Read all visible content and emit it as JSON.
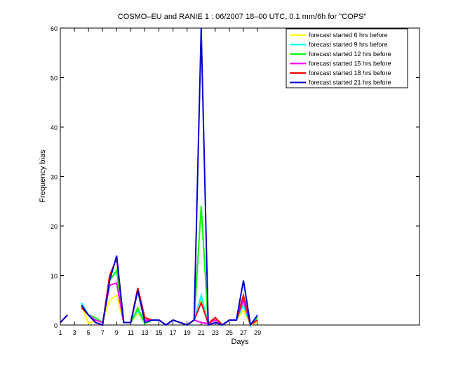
{
  "chart_data": {
    "type": "line",
    "title": "COSMO–EU and RANIE 1 : 06/2007 18–00 UTC, 0.1 mm/6h for \"COPS\"",
    "xlabel": "Days",
    "ylabel": "Frequency bias",
    "x": [
      1,
      2,
      3,
      4,
      5,
      6,
      7,
      8,
      9,
      10,
      11,
      12,
      13,
      14,
      15,
      16,
      17,
      18,
      19,
      20,
      21,
      22,
      23,
      24,
      25,
      26,
      27,
      28,
      29
    ],
    "xlim": [
      1,
      52
    ],
    "xticks": [
      1,
      3,
      5,
      7,
      9,
      11,
      13,
      15,
      17,
      19,
      21,
      23,
      25,
      27,
      29
    ],
    "ylim": [
      0,
      60
    ],
    "yticks": [
      0,
      10,
      20,
      30,
      40,
      50,
      60
    ],
    "legend": "upper right",
    "series": [
      {
        "name": "forecast started 6 hrs before",
        "color": "#ffff00",
        "values": [
          0.5,
          2,
          null,
          4,
          0.3,
          1,
          0.5,
          5,
          6,
          0.5,
          0.5,
          2.5,
          0.3,
          1,
          1,
          0,
          1,
          0.5,
          0,
          1,
          5,
          0.3,
          1,
          0,
          1,
          1,
          3,
          0,
          0.5
        ]
      },
      {
        "name": "forecast started 9 hrs before",
        "color": "#00ffff",
        "values": [
          0.5,
          2,
          null,
          4.5,
          2,
          1,
          0.5,
          8,
          8.5,
          0.5,
          0.5,
          3,
          0.3,
          1,
          1,
          0,
          1,
          0.5,
          0,
          1,
          6,
          0.3,
          1,
          0,
          1,
          1,
          4,
          0,
          1
        ]
      },
      {
        "name": "forecast started 12 hrs before",
        "color": "#00ff00",
        "values": [
          0.5,
          2,
          null,
          4,
          2,
          1.5,
          0.5,
          9,
          11,
          0.5,
          0.5,
          3.5,
          0.3,
          1,
          1,
          0,
          1,
          0.5,
          0,
          1,
          24,
          0.3,
          1.5,
          0,
          1,
          1,
          5,
          0,
          1.5
        ]
      },
      {
        "name": "forecast started 15 hrs before",
        "color": "#ff00ff",
        "values": [
          0.5,
          2,
          null,
          4,
          2,
          1,
          0.5,
          8,
          8.5,
          0.5,
          0.5,
          7,
          1,
          1,
          1,
          0,
          1,
          0.5,
          0,
          1,
          0.5,
          0.3,
          1,
          0,
          1,
          1,
          5,
          0,
          1
        ]
      },
      {
        "name": "forecast started 18 hrs before",
        "color": "#ff0000",
        "values": [
          0.5,
          2,
          null,
          3.5,
          2,
          0.5,
          0,
          10,
          13.5,
          0.5,
          0.5,
          7.5,
          1.5,
          1,
          1,
          0,
          1,
          0.5,
          0,
          1,
          4.5,
          0.3,
          1.5,
          0,
          1,
          1,
          6,
          0,
          1
        ]
      },
      {
        "name": "forecast started 21 hrs before",
        "color": "#0000cc",
        "values": [
          0.5,
          2,
          null,
          4,
          2,
          0.5,
          0,
          9,
          14,
          0.5,
          0.5,
          7,
          0.5,
          1,
          1,
          0,
          1,
          0.5,
          0,
          1,
          60,
          0,
          0.5,
          0,
          1,
          1,
          9,
          0,
          2
        ]
      }
    ]
  }
}
